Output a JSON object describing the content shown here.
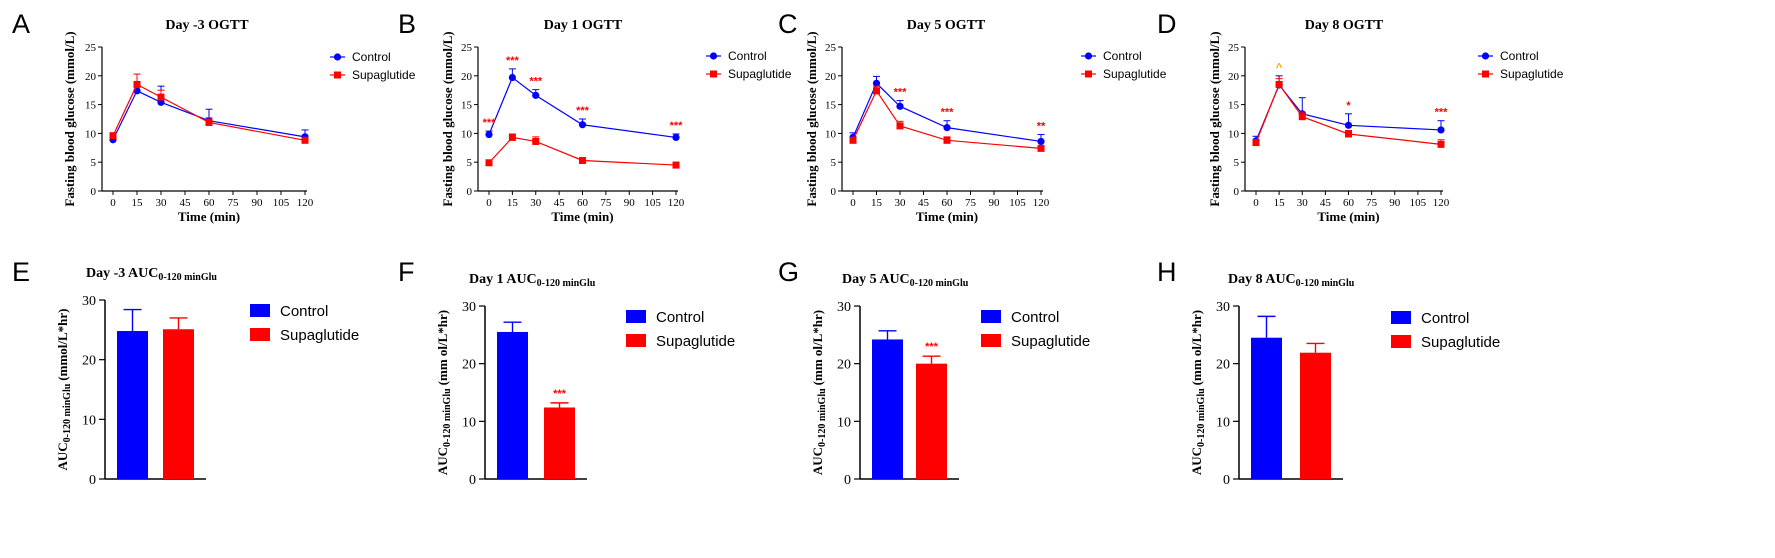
{
  "colors": {
    "control": "#0000ff",
    "supaglutide": "#ff0000",
    "caret": "#f4a400",
    "axis": "#000000"
  },
  "chart_data": [
    {
      "panel": "A",
      "type": "line",
      "title": "Day -3 OGTT",
      "xlabel": "Time (min)",
      "ylabel": "Fasting blood glucose (mmol/L)",
      "x": [
        0,
        15,
        30,
        60,
        120
      ],
      "xticks": [
        "0",
        "15",
        "30",
        "45",
        "60",
        "75",
        "90",
        "105",
        "120"
      ],
      "ylim": [
        0,
        25
      ],
      "yticks": [
        "0",
        "5",
        "10",
        "15",
        "20",
        "25"
      ],
      "legend": "top-right",
      "series": [
        {
          "name": "Control",
          "values": [
            8.9,
            17.4,
            15.4,
            12.2,
            9.4
          ],
          "err": [
            0.4,
            1.0,
            2.8,
            2.0,
            1.2
          ],
          "marker": "circle",
          "sig": []
        },
        {
          "name": "Supaglutide",
          "values": [
            9.6,
            18.5,
            16.3,
            11.9,
            8.8
          ],
          "err": [
            0.4,
            1.8,
            1.2,
            0.8,
            0.5
          ],
          "marker": "square",
          "sig": []
        }
      ]
    },
    {
      "panel": "B",
      "type": "line",
      "title": "Day 1 OGTT",
      "xlabel": "Time (min)",
      "ylabel": "Fasting blood glucose (mmol/L)",
      "x": [
        0,
        15,
        30,
        60,
        120
      ],
      "xticks": [
        "0",
        "15",
        "30",
        "45",
        "60",
        "75",
        "90",
        "105",
        "120"
      ],
      "ylim": [
        0,
        25
      ],
      "yticks": [
        "0",
        "5",
        "10",
        "15",
        "20",
        "25"
      ],
      "legend": "top-right",
      "series": [
        {
          "name": "Control",
          "values": [
            9.8,
            19.7,
            16.6,
            11.5,
            9.3
          ],
          "err": [
            0.6,
            1.5,
            1.0,
            1.0,
            0.6
          ],
          "marker": "circle",
          "sig": [
            "***",
            "***",
            "***",
            "***",
            "***"
          ]
        },
        {
          "name": "Supaglutide",
          "values": [
            4.9,
            9.3,
            8.6,
            5.3,
            4.5
          ],
          "err": [
            0.3,
            0.6,
            0.8,
            0.3,
            0.3
          ],
          "marker": "square",
          "sig": []
        }
      ]
    },
    {
      "panel": "C",
      "type": "line",
      "title": "Day 5 OGTT",
      "xlabel": "Time (min)",
      "ylabel": "Fasting blood glucose (mmol/L)",
      "x": [
        0,
        15,
        30,
        60,
        120
      ],
      "xticks": [
        "0",
        "15",
        "30",
        "45",
        "60",
        "75",
        "90",
        "105",
        "120"
      ],
      "ylim": [
        0,
        25
      ],
      "yticks": [
        "0",
        "5",
        "10",
        "15",
        "20",
        "25"
      ],
      "legend": "top-right",
      "series": [
        {
          "name": "Control",
          "values": [
            9.3,
            18.7,
            14.7,
            11.0,
            8.6
          ],
          "err": [
            0.8,
            1.2,
            1.0,
            1.2,
            1.2
          ],
          "marker": "circle",
          "sig": [
            "",
            "",
            "***",
            "***",
            "**"
          ]
        },
        {
          "name": "Supaglutide",
          "values": [
            8.8,
            17.4,
            11.3,
            8.8,
            7.4
          ],
          "err": [
            0.5,
            0.8,
            0.8,
            0.6,
            0.5
          ],
          "marker": "square",
          "sig": []
        }
      ]
    },
    {
      "panel": "D",
      "type": "line",
      "title": "Day 8 OGTT",
      "xlabel": "Time (min)",
      "ylabel": "Fasting blood glucose (mmol/L)",
      "x": [
        0,
        15,
        30,
        60,
        120
      ],
      "xticks": [
        "0",
        "15",
        "30",
        "45",
        "60",
        "75",
        "90",
        "105",
        "120"
      ],
      "ylim": [
        0,
        25
      ],
      "yticks": [
        "0",
        "5",
        "10",
        "15",
        "20",
        "25"
      ],
      "legend": "top-right",
      "series": [
        {
          "name": "Control",
          "values": [
            8.7,
            18.4,
            13.4,
            11.4,
            10.6
          ],
          "err": [
            0.8,
            1.6,
            2.8,
            2.0,
            1.6
          ],
          "marker": "circle",
          "sig": [
            "",
            "^",
            "",
            "*",
            "***"
          ]
        },
        {
          "name": "Supaglutide",
          "values": [
            8.4,
            18.5,
            12.9,
            9.9,
            8.1
          ],
          "err": [
            0.5,
            1.0,
            0.8,
            0.6,
            0.8
          ],
          "marker": "square",
          "sig": []
        }
      ]
    },
    {
      "panel": "E",
      "type": "bar",
      "title_main": "Day -3 AUC",
      "title_sub": "0-120 minGlu",
      "ylabel_main": "AUC",
      "ylabel_sub": "0-120 minGlu",
      "ylabel_tail": "(mmol/L*hr)",
      "categories": [
        "Control",
        "Supaglutide"
      ],
      "ylim": [
        0,
        30
      ],
      "yticks": [
        "0",
        "10",
        "20",
        "30"
      ],
      "legend": "right",
      "values": [
        24.8,
        25.1
      ],
      "err": [
        3.6,
        1.9
      ],
      "sig": [
        "",
        ""
      ]
    },
    {
      "panel": "F",
      "type": "bar",
      "title_main": "Day 1 AUC",
      "title_sub": "0-120 minGlu",
      "ylabel_main": "AUC",
      "ylabel_sub": "0-120 minGlu",
      "ylabel_tail": "(mm ol/L*hr)",
      "categories": [
        "Control",
        "Supaglutide"
      ],
      "ylim": [
        0,
        30
      ],
      "yticks": [
        "0",
        "10",
        "20",
        "30"
      ],
      "legend": "right",
      "values": [
        25.5,
        12.4
      ],
      "err": [
        1.7,
        0.8
      ],
      "sig": [
        "",
        "***"
      ]
    },
    {
      "panel": "G",
      "type": "bar",
      "title_main": "Day 5 AUC",
      "title_sub": "0-120 minGlu",
      "ylabel_main": "AUC",
      "ylabel_sub": "0-120 minGlu",
      "ylabel_tail": "(mm ol/L*hr)",
      "categories": [
        "Control",
        "Supaglutide"
      ],
      "ylim": [
        0,
        30
      ],
      "yticks": [
        "0",
        "10",
        "20",
        "30"
      ],
      "legend": "right",
      "values": [
        24.2,
        20.0
      ],
      "err": [
        1.5,
        1.3
      ],
      "sig": [
        "",
        "***"
      ]
    },
    {
      "panel": "H",
      "type": "bar",
      "title_main": "Day 8 AUC",
      "title_sub": "0-120 minGlu",
      "ylabel_main": "AUC",
      "ylabel_sub": "0-120 minGlu",
      "ylabel_tail": "(mm ol/L*hr)",
      "categories": [
        "Control",
        "Supaglutide"
      ],
      "ylim": [
        0,
        30
      ],
      "yticks": [
        "0",
        "10",
        "20",
        "30"
      ],
      "legend": "right",
      "values": [
        24.5,
        21.9
      ],
      "err": [
        3.7,
        1.6
      ],
      "sig": [
        "",
        ""
      ]
    }
  ]
}
